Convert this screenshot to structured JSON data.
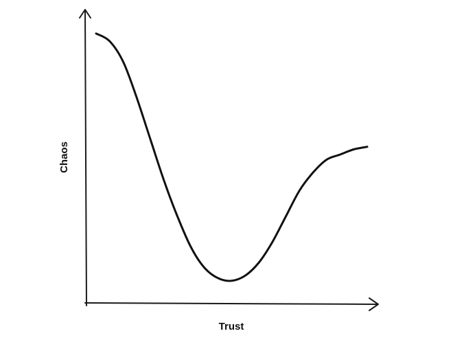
{
  "chart_data": {
    "type": "line",
    "title": "",
    "xlabel": "Trust",
    "ylabel": "Chaos",
    "xlim": [
      0,
      10
    ],
    "ylim": [
      0,
      10
    ],
    "grid": false,
    "legend": "none",
    "tick_labels": false,
    "line_color": "#111111",
    "series": [
      {
        "x": [
          0,
          0.5,
          1,
          1.5,
          2,
          2.5,
          3,
          3.5,
          4,
          4.5,
          5,
          5.5,
          6,
          6.5,
          7,
          7.5,
          8,
          8.5,
          9,
          9.5,
          10
        ],
        "values": [
          9.9,
          9.6,
          8.8,
          7.4,
          5.8,
          4.2,
          2.8,
          1.6,
          0.8,
          0.4,
          0.3,
          0.5,
          1.0,
          1.8,
          2.8,
          3.8,
          4.5,
          5.0,
          5.2,
          5.4,
          5.5
        ]
      }
    ]
  }
}
